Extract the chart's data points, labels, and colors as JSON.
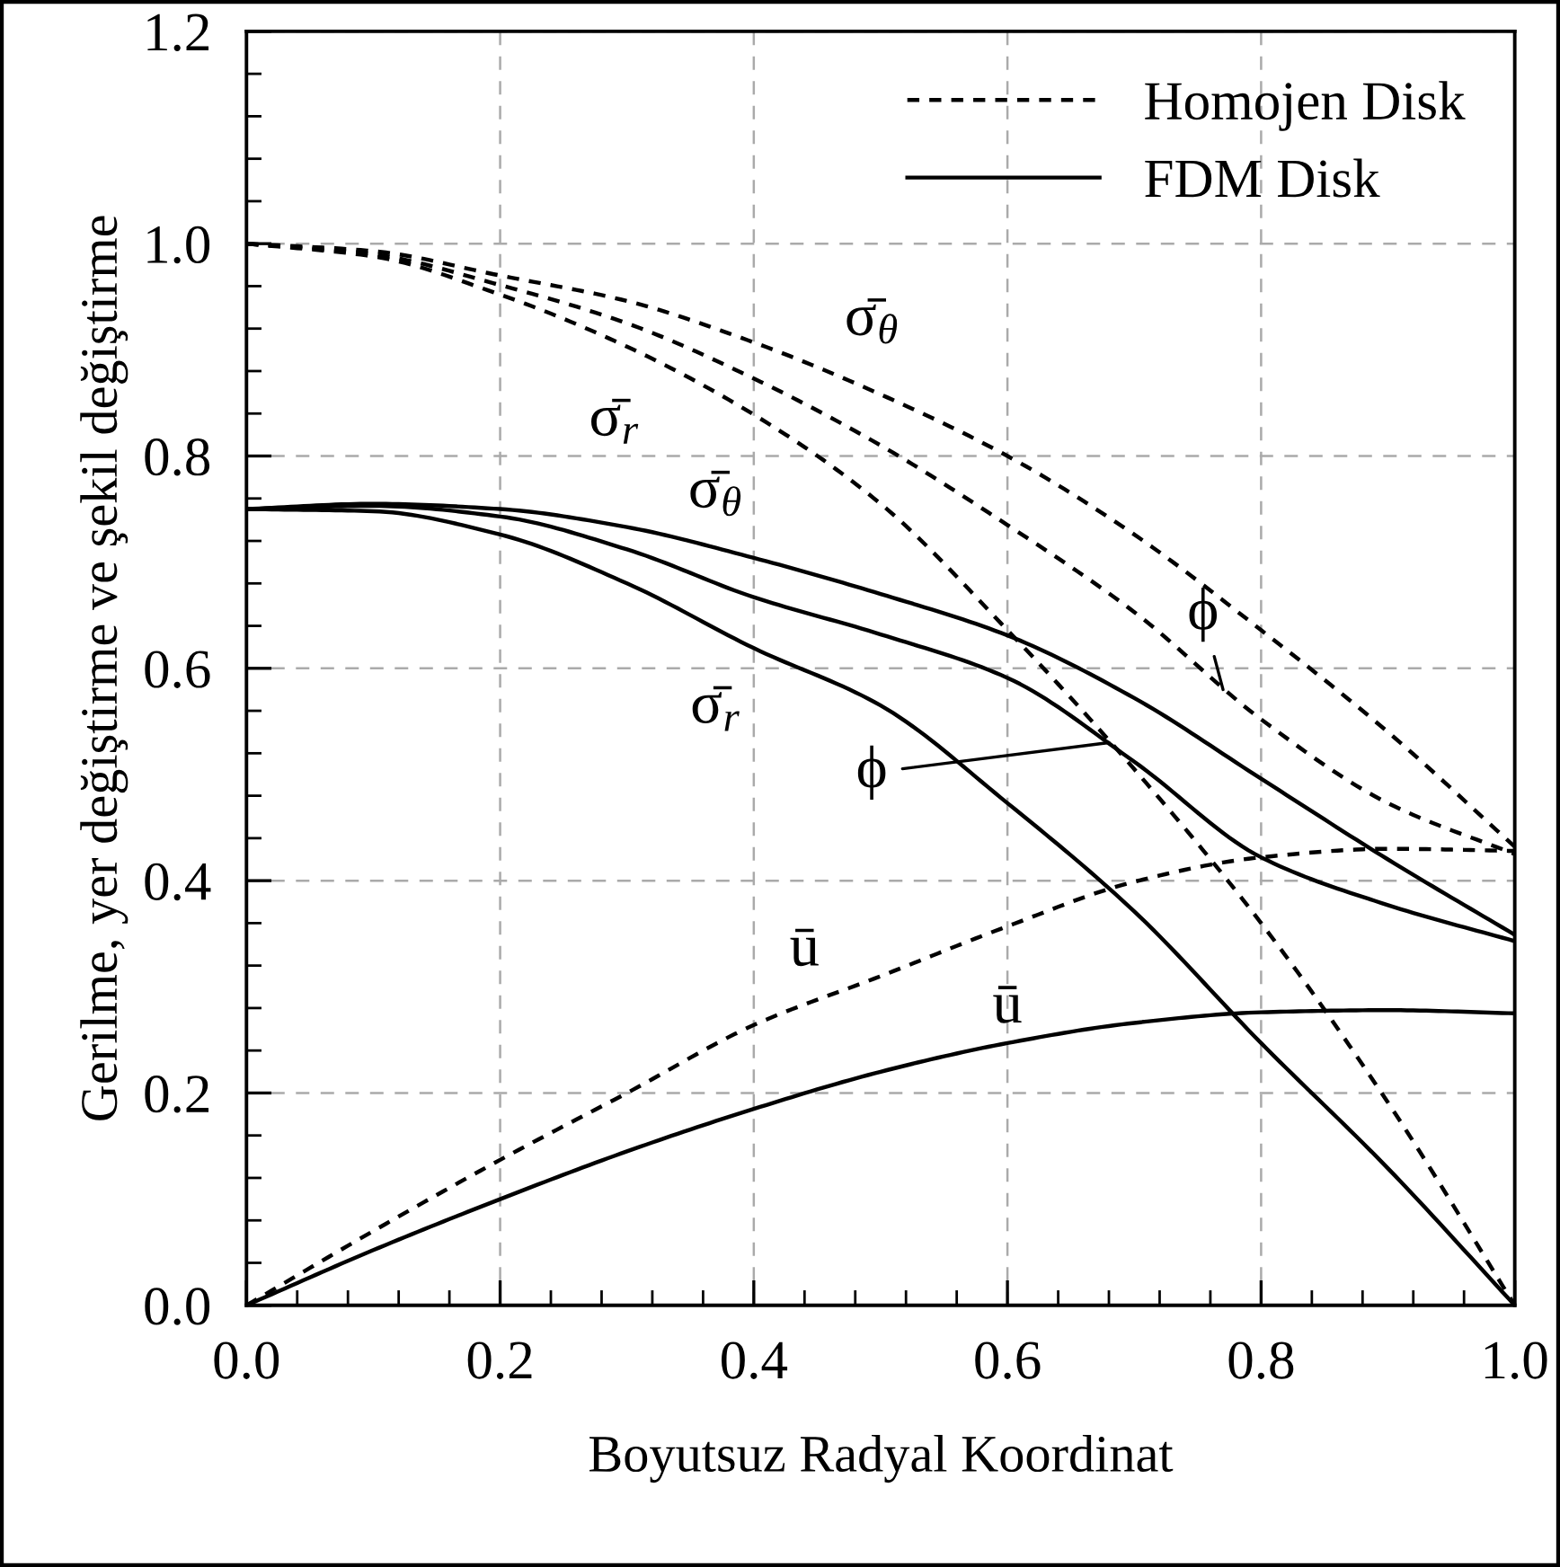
{
  "chart_data": {
    "type": "line",
    "xlabel": "Boyutsuz Radyal Koordinat",
    "ylabel": "Gerilme, yer değiştirme ve şekil değiştirme",
    "x": [
      0,
      0.1,
      0.2,
      0.3,
      0.4,
      0.5,
      0.6,
      0.7,
      0.8,
      0.9,
      1.0
    ],
    "series": [
      {
        "name": "Homojen Disk",
        "color": "#000000",
        "line_style": "dashed",
        "values": [
          1.0,
          0.993,
          0.97,
          0.946,
          0.907,
          0.858,
          0.8,
          0.726,
          0.636,
          0.54,
          0.432
        ]
      },
      {
        "color": "#000000",
        "line_style": "dashed",
        "values": [
          1.0,
          0.99,
          0.961,
          0.925,
          0.873,
          0.81,
          0.735,
          0.653,
          0.552,
          0.473,
          0.425
        ]
      },
      {
        "color": "#000000",
        "line_style": "dashed",
        "values": [
          1.0,
          0.988,
          0.952,
          0.903,
          0.839,
          0.755,
          0.636,
          0.505,
          0.36,
          0.191,
          0.0
        ]
      },
      {
        "color": "#000000",
        "line_style": "dashed",
        "values": [
          0.0,
          0.07,
          0.137,
          0.2,
          0.264,
          0.31,
          0.357,
          0.399,
          0.422,
          0.43,
          0.428
        ]
      },
      {
        "name": "FDM Disk",
        "color": "#000000",
        "line_style": "solid",
        "values": [
          0.75,
          0.755,
          0.75,
          0.733,
          0.704,
          0.67,
          0.631,
          0.572,
          0.496,
          0.42,
          0.349
        ]
      },
      {
        "color": "#000000",
        "line_style": "solid",
        "values": [
          0.75,
          0.753,
          0.743,
          0.712,
          0.667,
          0.632,
          0.591,
          0.512,
          0.422,
          0.377,
          0.343
        ]
      },
      {
        "color": "#000000",
        "line_style": "solid",
        "values": [
          0.75,
          0.748,
          0.726,
          0.68,
          0.619,
          0.565,
          0.473,
          0.371,
          0.247,
          0.129,
          0.0
        ]
      },
      {
        "color": "#000000",
        "line_style": "solid",
        "values": [
          0.0,
          0.052,
          0.1,
          0.145,
          0.185,
          0.22,
          0.247,
          0.266,
          0.276,
          0.278,
          0.275
        ]
      }
    ],
    "annotations": [
      {
        "text": "σ̄$_{θ}$",
        "x": 0.45,
        "y": 0.88
      },
      {
        "text": "σ̄$_{r}$",
        "x": 0.3,
        "y": 0.903
      },
      {
        "text": "σ̄$_{θ}$",
        "x": 0.37,
        "y": 0.713
      },
      {
        "text": "σ̄$_{r}$",
        "x": 0.37,
        "y": 0.637
      },
      {
        "text": "ϕ",
        "x": 0.77,
        "y": 0.58
      },
      {
        "text": "ϕ",
        "x": 0.68,
        "y": 0.53
      },
      {
        "text": "ū",
        "x": 0.44,
        "y": 0.282
      },
      {
        "text": "ū",
        "x": 0.6,
        "y": 0.247
      }
    ],
    "xlim": [
      0,
      1.0
    ],
    "ylim": [
      0,
      1.2
    ],
    "xticks": [
      {
        "value": 0,
        "label": "0.0"
      },
      0.2,
      0.4,
      0.6,
      0.8,
      {
        "value": 1.0,
        "label": "1.0"
      }
    ],
    "yticks": [
      {
        "value": 0,
        "label": "0.0"
      },
      0.2,
      0.4,
      0.6,
      0.8,
      {
        "value": 1.0,
        "label": "1.0"
      },
      1.2
    ],
    "grid": true,
    "legend": "top right"
  }
}
